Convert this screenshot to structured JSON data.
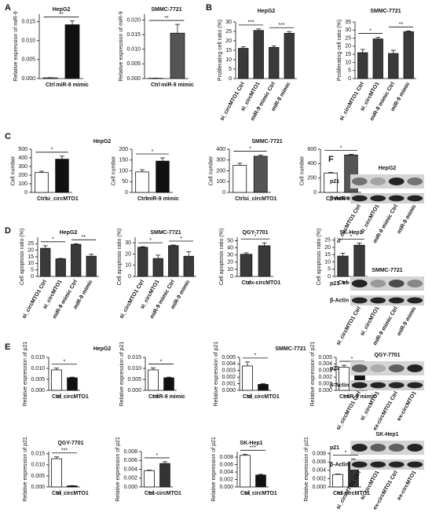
{
  "panel_labels": [
    "A",
    "B",
    "C",
    "D",
    "E",
    "F"
  ],
  "chart_data": [
    {
      "type": "bar",
      "title": "HepG2",
      "y_label": "Relative expression of miR-9",
      "categories": [
        "Ctrl",
        "miR-9 mimic"
      ],
      "values": [
        0.0002,
        0.0142
      ],
      "errors": [
        5e-05,
        0.001
      ],
      "colors": [
        "#ffffff",
        "#111111"
      ],
      "ylim": [
        0,
        0.017
      ],
      "yticks": [
        {
          "value": 0,
          "label": "0.000"
        },
        {
          "value": 0.005,
          "label": "0.005"
        },
        {
          "value": 0.01,
          "label": "0.010"
        },
        {
          "value": 0.015,
          "label": "0.015"
        }
      ],
      "annotations": [
        {
          "text": "**",
          "between": [
            "Ctrl",
            "miR-9 mimic"
          ]
        }
      ]
    },
    {
      "type": "bar",
      "title": "SMMC-7721",
      "y_label": "Relative expression of miR-9",
      "categories": [
        "Ctrl",
        "miR-9 mimic"
      ],
      "values": [
        0.0001,
        0.0155
      ],
      "errors": [
        5e-05,
        0.003
      ],
      "colors": [
        "#ffffff",
        "#555555"
      ],
      "ylim": [
        0,
        0.022
      ],
      "yticks": [
        {
          "value": 0,
          "label": "0.000"
        },
        {
          "value": 0.005,
          "label": "0.005"
        },
        {
          "value": 0.01,
          "label": "0.010"
        },
        {
          "value": 0.015,
          "label": "0.015"
        },
        {
          "value": 0.02,
          "label": "0.020"
        }
      ],
      "annotations": [
        {
          "text": "**",
          "between": [
            "Ctrl",
            "miR-9 mimic"
          ]
        }
      ]
    },
    {
      "type": "bar",
      "title": "HepG2",
      "y_label": "Proliferating cell ratio (%)",
      "categories": [
        "si_circMTO1 Ctrl",
        "si_circMTO1",
        "miR-9 mimic Ctrl",
        "miR-9 mimic"
      ],
      "values": [
        16,
        25.5,
        16.5,
        24
      ],
      "errors": [
        0.8,
        0.8,
        0.8,
        0.9
      ],
      "colors": [
        "#3a3a3a",
        "#3a3a3a",
        "#3a3a3a",
        "#3a3a3a"
      ],
      "ylim": [
        0,
        30
      ],
      "yticks": [
        0,
        5,
        10,
        15,
        20,
        25,
        30
      ],
      "annotations": [
        {
          "text": "***",
          "between": [
            "si_circMTO1 Ctrl",
            "si_circMTO1"
          ]
        },
        {
          "text": "***",
          "between": [
            "miR-9 mimic Ctrl",
            "miR-9 mimic"
          ]
        }
      ]
    },
    {
      "type": "bar",
      "title": "SMMC-7721",
      "y_label": "Proliferating cell ratio (%)",
      "categories": [
        "si_circMTO1 Ctrl",
        "si_circMTO1",
        "miR-9 mimic Ctrl",
        "miR-9 mimic"
      ],
      "values": [
        16,
        24.5,
        15.5,
        29
      ],
      "errors": [
        2,
        1,
        2,
        0.5
      ],
      "colors": [
        "#3a3a3a",
        "#3a3a3a",
        "#3a3a3a",
        "#3a3a3a"
      ],
      "ylim": [
        0,
        35
      ],
      "yticks": [
        0,
        5,
        10,
        15,
        20,
        25,
        30,
        35
      ],
      "annotations": [
        {
          "text": "*",
          "between": [
            "si_circMTO1 Ctrl",
            "si_circMTO1"
          ]
        },
        {
          "text": "**",
          "between": [
            "miR-9 mimic Ctrl",
            "miR-9 mimic"
          ]
        }
      ]
    },
    {
      "type": "bar",
      "title": "HepG2",
      "y_label": "Cell number",
      "categories": [
        "Ctrl",
        "si_circMTO1"
      ],
      "values": [
        230,
        385
      ],
      "errors": [
        15,
        35
      ],
      "colors": [
        "#ffffff",
        "#111111"
      ],
      "ylim": [
        0,
        500
      ],
      "yticks": [
        0,
        100,
        200,
        300,
        400,
        500
      ],
      "annotations": [
        {
          "text": "*",
          "between": [
            "Ctrl",
            "si_circMTO1"
          ]
        }
      ]
    },
    {
      "type": "bar",
      "y_label": "Cell number",
      "categories": [
        "Ctrl",
        "miR-9 mimic"
      ],
      "values": [
        95,
        145
      ],
      "errors": [
        10,
        15
      ],
      "colors": [
        "#ffffff",
        "#111111"
      ],
      "ylim": [
        0,
        200
      ],
      "yticks": [
        0,
        50,
        100,
        150,
        200
      ],
      "annotations": [
        {
          "text": "*",
          "between": [
            "Ctrl",
            "miR-9 mimic"
          ]
        }
      ]
    },
    {
      "type": "bar",
      "title": "SMMC-7721",
      "y_label": "Cell number",
      "categories": [
        "Ctrl",
        "si_circMTO1"
      ],
      "values": [
        250,
        335
      ],
      "errors": [
        20,
        10
      ],
      "colors": [
        "#ffffff",
        "#555555"
      ],
      "ylim": [
        0,
        400
      ],
      "yticks": [
        0,
        100,
        200,
        300,
        400
      ],
      "annotations": [
        {
          "text": "*",
          "between": [
            "Ctrl",
            "si_circMTO1"
          ]
        }
      ]
    },
    {
      "type": "bar",
      "y_label": "Cell number",
      "categories": [
        "Ctrl",
        "miR-9 mimic"
      ],
      "values": [
        270,
        520
      ],
      "errors": [
        8,
        8
      ],
      "colors": [
        "#ffffff",
        "#555555"
      ],
      "ylim": [
        0,
        600
      ],
      "yticks": [
        0,
        200,
        400,
        600
      ],
      "annotations": [
        {
          "text": "*",
          "between": [
            "Ctrl",
            "miR-9 mimic"
          ]
        }
      ]
    },
    {
      "type": "bar",
      "title": "HepG2",
      "y_label": "Cell apoptosis ratio (%)",
      "categories": [
        "si_circMTO1 Ctrl",
        "si_circMTO1",
        "miR-9 mimic Ctrl",
        "miR-9 mimic"
      ],
      "values": [
        21.5,
        13.5,
        24.5,
        15.5
      ],
      "errors": [
        2,
        0.3,
        0.5,
        1.5
      ],
      "colors": [
        "#3a3a3a",
        "#3a3a3a",
        "#3a3a3a",
        "#3a3a3a"
      ],
      "ylim": [
        0,
        30
      ],
      "yticks": [
        0,
        5,
        10,
        15,
        20,
        25
      ],
      "annotations": [
        {
          "text": "*",
          "between": [
            "si_circMTO1 Ctrl",
            "si_circMTO1"
          ]
        },
        {
          "text": "**",
          "between": [
            "miR-9 mimic Ctrl",
            "miR-9 mimic"
          ]
        }
      ]
    },
    {
      "type": "bar",
      "title": "SMMC-7721",
      "y_label": "Cell apoptosis ratio (%)",
      "categories": [
        "si_circMTO1 Ctrl",
        "si_circMTO1",
        "miR-9 mimic Ctrl",
        "miR-9 mimic"
      ],
      "values": [
        26,
        16,
        27.5,
        18
      ],
      "errors": [
        0.5,
        3,
        0.5,
        4
      ],
      "colors": [
        "#3a3a3a",
        "#3a3a3a",
        "#3a3a3a",
        "#3a3a3a"
      ],
      "ylim": [
        0,
        35
      ],
      "yticks": [
        0,
        10,
        20,
        30
      ],
      "annotations": [
        {
          "text": "*",
          "between": [
            "si_circMTO1 Ctrl",
            "si_circMTO1"
          ]
        },
        {
          "text": "*",
          "between": [
            "miR-9 mimic Ctrl",
            "miR-9 mimic"
          ]
        }
      ]
    },
    {
      "type": "bar",
      "title": "QGY-7701",
      "y_label": "Cell apoptosis ratio (%)",
      "categories": [
        "Ctrl",
        "ex-circMTO1"
      ],
      "values": [
        31,
        43
      ],
      "errors": [
        2,
        4
      ],
      "colors": [
        "#3a3a3a",
        "#3a3a3a"
      ],
      "ylim": [
        0,
        55
      ],
      "yticks": [
        0,
        10,
        20,
        30,
        40,
        50
      ],
      "annotations": [
        {
          "text": "*",
          "between": [
            "Ctrl",
            "ex-circMTO1"
          ]
        }
      ]
    },
    {
      "type": "bar",
      "title": "SK-Hep1",
      "y_label": "Cell apoptosis ratio (%)",
      "categories": [
        "Ctrl",
        "ex-circMTO1"
      ],
      "values": [
        14,
        21.5
      ],
      "errors": [
        2,
        1.5
      ],
      "colors": [
        "#3a3a3a",
        "#3a3a3a"
      ],
      "ylim": [
        0,
        27
      ],
      "yticks": [
        0,
        5,
        10,
        15,
        20,
        25
      ],
      "annotations": [
        {
          "text": "*",
          "between": [
            "Ctrl",
            "ex-circMTO1"
          ]
        }
      ]
    },
    {
      "type": "bar",
      "title": "HepG2",
      "y_label": "Relative expression of p21",
      "categories": [
        "Ctrl",
        "si_circMTO1"
      ],
      "values": [
        0.0093,
        0.0057
      ],
      "errors": [
        0.0008,
        0.0003
      ],
      "colors": [
        "#ffffff",
        "#111111"
      ],
      "ylim": [
        0,
        0.015
      ],
      "yticks": [
        {
          "value": 0,
          "label": "0.000"
        },
        {
          "value": 0.005,
          "label": "0.005"
        },
        {
          "value": 0.01,
          "label": "0.010"
        },
        {
          "value": 0.015,
          "label": "0.015"
        }
      ],
      "annotations": [
        {
          "text": "*",
          "between": [
            "Ctrl",
            "si_circMTO1"
          ]
        }
      ]
    },
    {
      "type": "bar",
      "y_label": "Relative expression of p21",
      "categories": [
        "Ctrl",
        "miR-9 mimic"
      ],
      "values": [
        0.0093,
        0.0057
      ],
      "errors": [
        0.0009,
        0.0003
      ],
      "colors": [
        "#ffffff",
        "#111111"
      ],
      "ylim": [
        0,
        0.015
      ],
      "yticks": [
        {
          "value": 0,
          "label": "0.000"
        },
        {
          "value": 0.005,
          "label": "0.005"
        },
        {
          "value": 0.01,
          "label": "0.010"
        },
        {
          "value": 0.015,
          "label": "0.015"
        }
      ],
      "annotations": [
        {
          "text": "*",
          "between": [
            "Ctrl",
            "miR-9 mimic"
          ]
        }
      ]
    },
    {
      "type": "bar",
      "title": "SMMC-7721",
      "y_label": "Relative expression of p21",
      "categories": [
        "Ctrl",
        "si_circMTO1"
      ],
      "values": [
        0.0037,
        0.0009
      ],
      "errors": [
        0.0006,
        0.0001
      ],
      "colors": [
        "#ffffff",
        "#111111"
      ],
      "ylim": [
        0,
        0.005
      ],
      "yticks": [
        {
          "value": 0,
          "label": "0.000"
        },
        {
          "value": 0.001,
          "label": "0.001"
        },
        {
          "value": 0.002,
          "label": "0.002"
        },
        {
          "value": 0.003,
          "label": "0.003"
        },
        {
          "value": 0.004,
          "label": "0.004"
        },
        {
          "value": 0.005,
          "label": "0.005"
        }
      ],
      "annotations": [
        {
          "text": "*",
          "between": [
            "Ctrl",
            "si_circMTO1"
          ]
        }
      ]
    },
    {
      "type": "bar",
      "y_label": "Relative expression of p21",
      "categories": [
        "Ctrl",
        "miR-9 mimic"
      ],
      "values": [
        0.0035,
        0.0022
      ],
      "errors": [
        0.0003,
        0.0003
      ],
      "colors": [
        "#ffffff",
        "#111111"
      ],
      "ylim": [
        0,
        0.005
      ],
      "yticks": [
        {
          "value": 0,
          "label": "0.000"
        },
        {
          "value": 0.001,
          "label": "0.001"
        },
        {
          "value": 0.002,
          "label": "0.002"
        },
        {
          "value": 0.003,
          "label": "0.003"
        },
        {
          "value": 0.004,
          "label": "0.004"
        },
        {
          "value": 0.005,
          "label": "0.005"
        }
      ],
      "annotations": [
        {
          "text": "*",
          "between": [
            "Ctrl",
            "miR-9 mimic"
          ]
        }
      ]
    },
    {
      "type": "bar",
      "title": "QGY-7701",
      "y_label": "Relative expression of p21",
      "categories": [
        "Ctrl",
        "si_circMTO1"
      ],
      "values": [
        0.0128,
        0.0005
      ],
      "errors": [
        0.0008,
        0.0001
      ],
      "colors": [
        "#ffffff",
        "#111111"
      ],
      "ylim": [
        0,
        0.016
      ],
      "yticks": [
        {
          "value": 0,
          "label": "0.000"
        },
        {
          "value": 0.005,
          "label": "0.005"
        },
        {
          "value": 0.01,
          "label": "0.010"
        },
        {
          "value": 0.015,
          "label": "0.015"
        }
      ],
      "annotations": [
        {
          "text": "***",
          "between": [
            "Ctrl",
            "si_circMTO1"
          ]
        }
      ]
    },
    {
      "type": "bar",
      "y_label": "Relative expression of p21",
      "categories": [
        "Ctrl",
        "ex-circMTO1"
      ],
      "values": [
        0.0037,
        0.0053
      ],
      "errors": [
        0.0001,
        0.0004
      ],
      "colors": [
        "#ffffff",
        "#333333"
      ],
      "ylim": [
        0,
        0.008
      ],
      "yticks": [
        {
          "value": 0,
          "label": "0.000"
        },
        {
          "value": 0.002,
          "label": "0.002"
        },
        {
          "value": 0.004,
          "label": "0.004"
        },
        {
          "value": 0.006,
          "label": "0.006"
        },
        {
          "value": 0.008,
          "label": "0.008"
        }
      ],
      "annotations": [
        {
          "text": "*",
          "between": [
            "Ctrl",
            "ex-circMTO1"
          ]
        }
      ]
    },
    {
      "type": "bar",
      "title": "SK-Hep1",
      "y_label": "Relative expression of p21",
      "categories": [
        "Ctrl",
        "si_circMTO1"
      ],
      "values": [
        0.0085,
        0.0032
      ],
      "errors": [
        0.0003,
        0.0002
      ],
      "colors": [
        "#ffffff",
        "#111111"
      ],
      "ylim": [
        0,
        0.0095
      ],
      "yticks": [
        {
          "value": 0,
          "label": "0.000"
        },
        {
          "value": 0.002,
          "label": "0.002"
        },
        {
          "value": 0.004,
          "label": "0.004"
        },
        {
          "value": 0.006,
          "label": "0.006"
        },
        {
          "value": 0.008,
          "label": "0.008"
        }
      ],
      "annotations": [
        {
          "text": "***",
          "between": [
            "Ctrl",
            "si_circMTO1"
          ]
        }
      ]
    },
    {
      "type": "bar",
      "y_label": "Relative expression of p21",
      "categories": [
        "Ctrl",
        "ex-circMTO1"
      ],
      "values": [
        0.003,
        0.006
      ],
      "errors": [
        0.0001,
        0.0007
      ],
      "colors": [
        "#ffffff",
        "#333333"
      ],
      "ylim": [
        0,
        0.0085
      ],
      "yticks": [
        {
          "value": 0,
          "label": "0.000"
        },
        {
          "value": 0.002,
          "label": "0.002"
        },
        {
          "value": 0.004,
          "label": "0.004"
        },
        {
          "value": 0.006,
          "label": "0.006"
        },
        {
          "value": 0.008,
          "label": "0.008"
        }
      ],
      "annotations": [
        {
          "text": "*",
          "between": [
            "Ctrl",
            "ex-circMTO1"
          ]
        }
      ]
    }
  ],
  "blots": [
    {
      "title": "HepG2",
      "rows": [
        "p21",
        "β-Actin"
      ],
      "lanes": [
        "si_circMTO1 Ctrl",
        "si_circMTO1",
        "miR-9 mimic Ctrl",
        "miR-9 mimic"
      ]
    },
    {
      "title": "SMMC-7721",
      "rows": [
        "p21",
        "β-Actin"
      ],
      "lanes": [
        "si_circMTO1 Ctrl",
        "si_circMTO1",
        "miR-9 mimic Ctrl",
        "miR-9 mimic"
      ]
    },
    {
      "title": "QGY-7701",
      "rows": [
        "p21",
        "β-Actin"
      ],
      "lanes": [
        "si_circMTO1 Ctrl",
        "si_circMTO1",
        "ex-circMTO1 Ctrl",
        "ex-circMTO1"
      ]
    },
    {
      "title": "SK-Hep1",
      "rows": [
        "p21",
        "β-Actin"
      ],
      "lanes": [
        "si_circMTO1 Ctrl",
        "si_circMTO1",
        "ex-circMTO1 Ctrl",
        "ex-circMTO1"
      ]
    }
  ]
}
